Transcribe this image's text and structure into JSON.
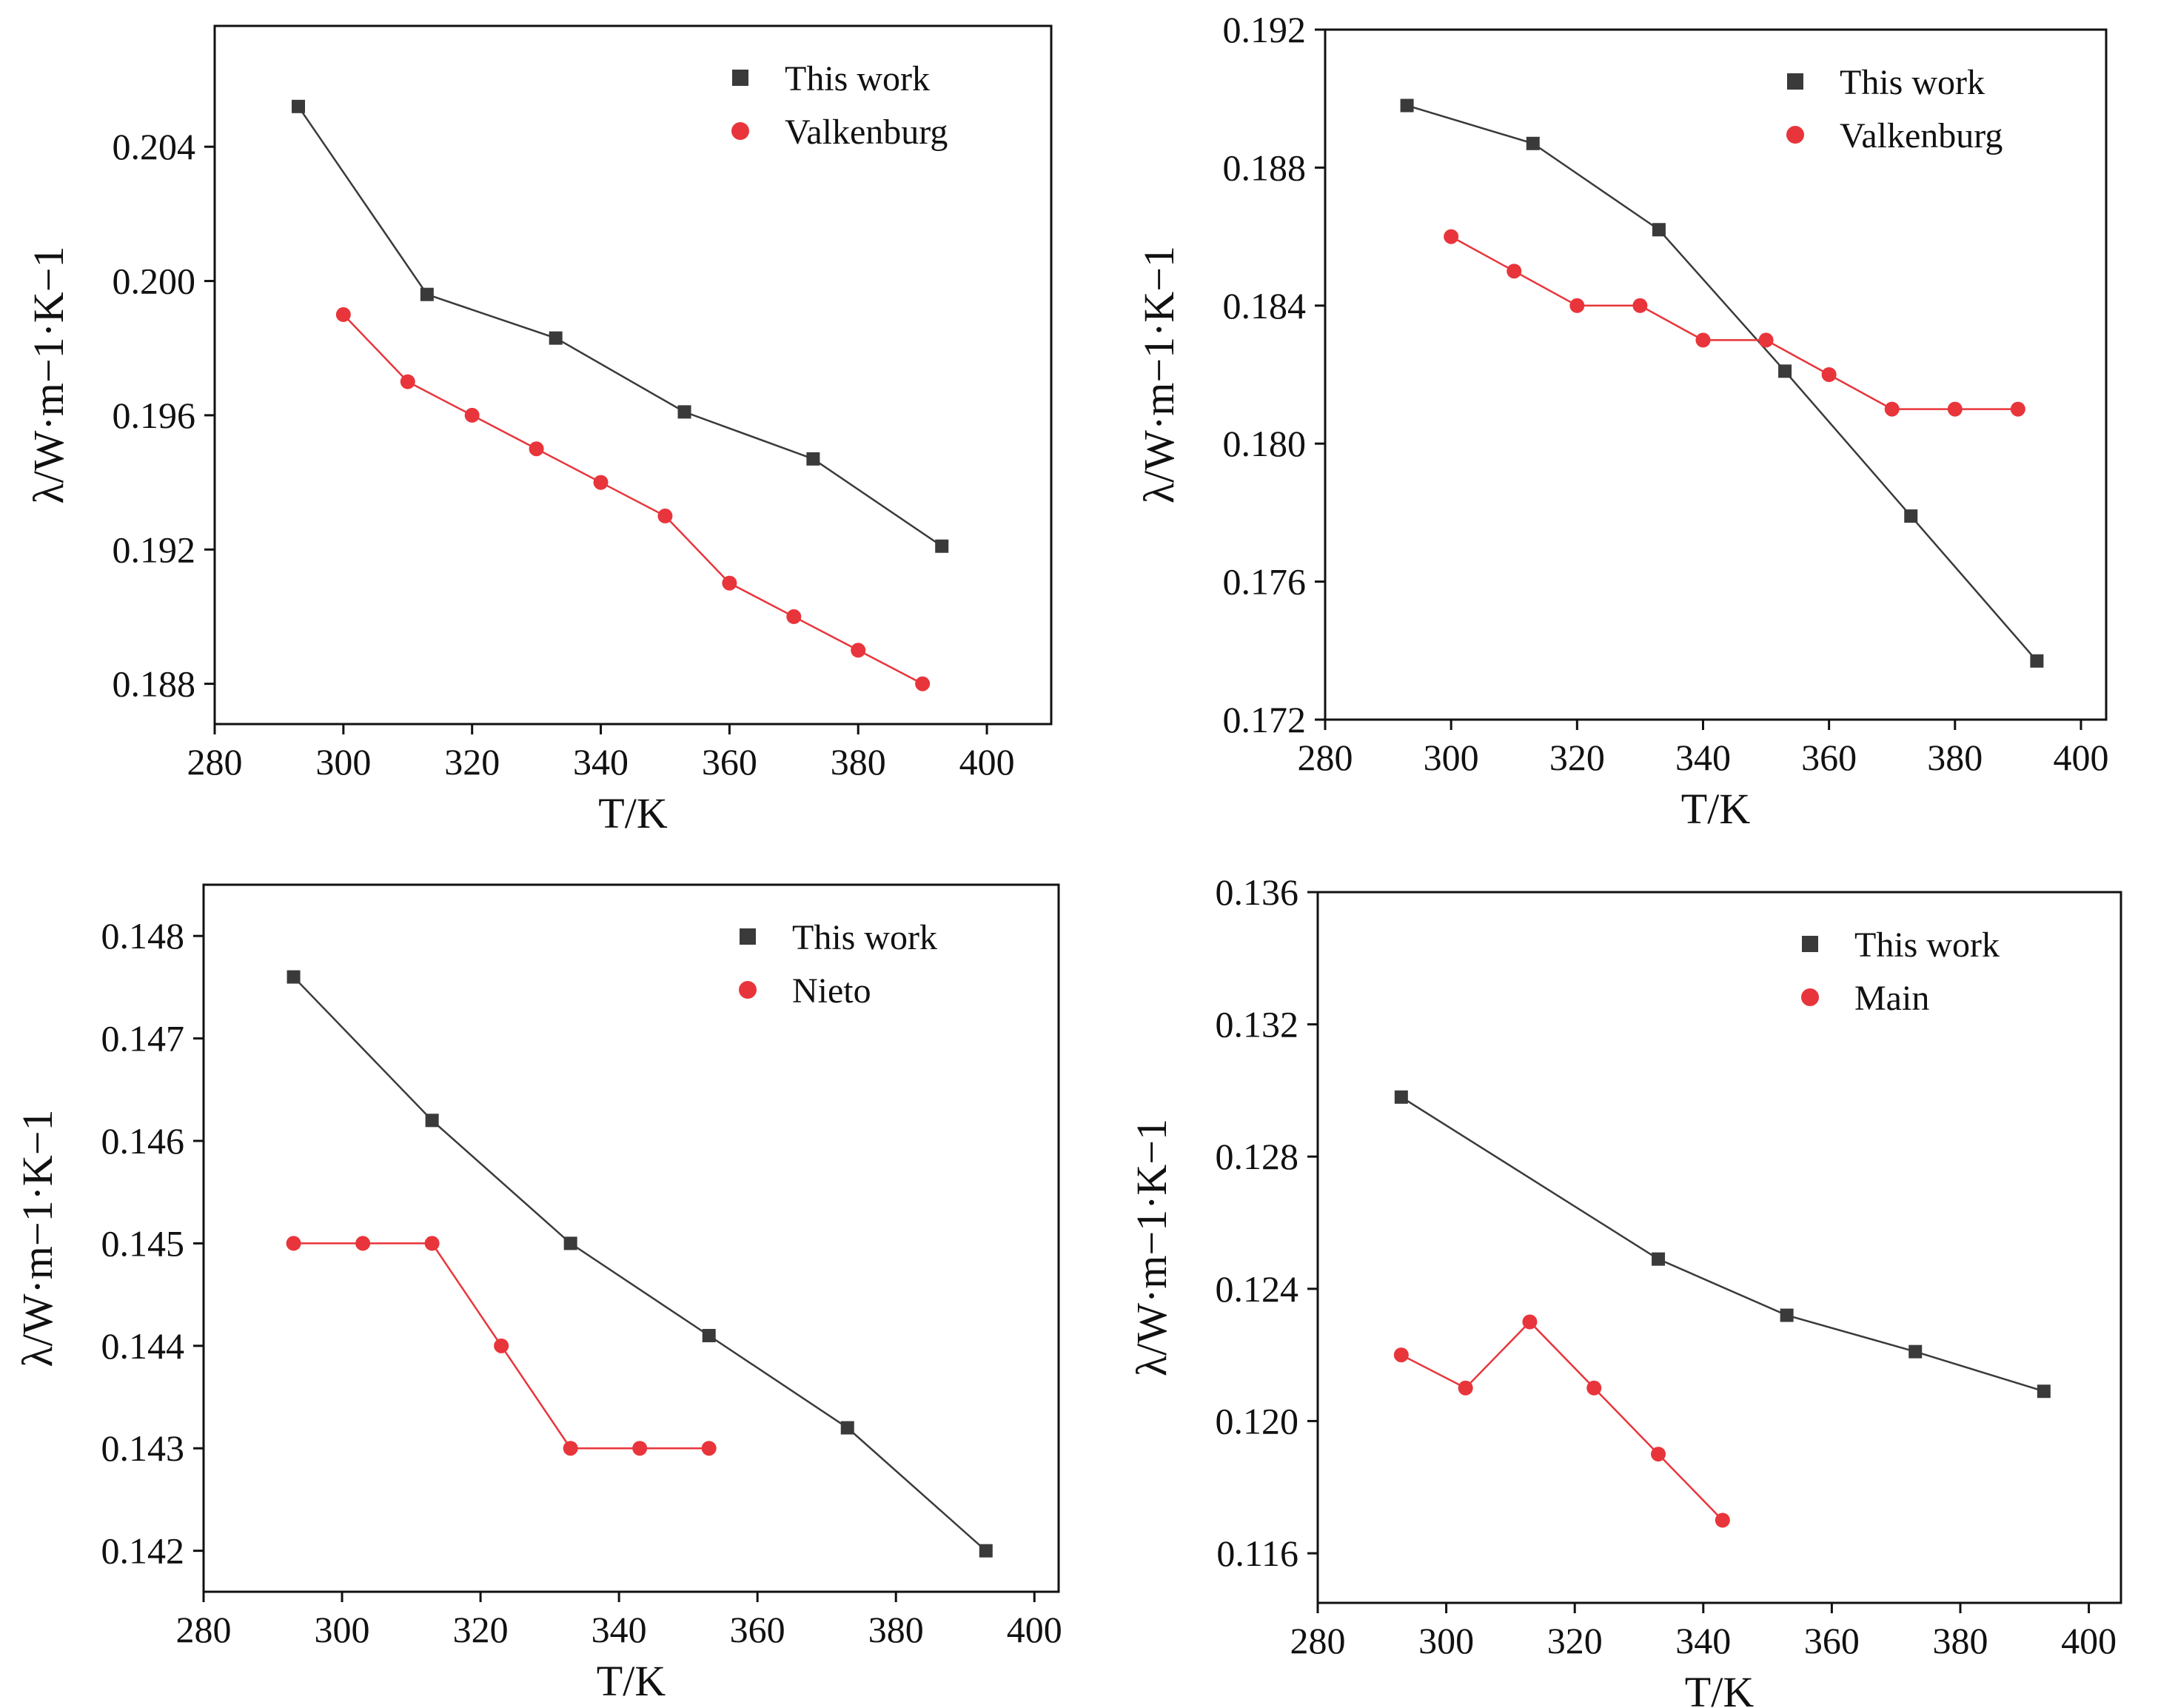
{
  "chart_data": [
    {
      "type": "line",
      "xlabel": "T/K",
      "ylabel": "λ/W·m−1·K−1",
      "xlim": [
        280,
        410
      ],
      "ylim": [
        0.1868,
        0.2076
      ],
      "xticks": [
        280,
        300,
        320,
        340,
        360,
        380,
        400
      ],
      "yticks": [
        0.188,
        0.192,
        0.196,
        0.2,
        0.204
      ],
      "ytick_labels": [
        "0.188",
        "0.192",
        "0.196",
        "0.200",
        "0.204"
      ],
      "legend_position": "top-right",
      "series": [
        {
          "name": "This work",
          "marker": "square",
          "color": "#3a3a3a",
          "x": [
            293,
            313,
            333,
            353,
            373,
            393
          ],
          "y": [
            0.2052,
            0.1996,
            0.1983,
            0.1961,
            0.1947,
            0.1921
          ]
        },
        {
          "name": "Valkenburg",
          "marker": "circle",
          "color": "#e8353b",
          "x": [
            300,
            310,
            320,
            330,
            340,
            350,
            360,
            370,
            380,
            390
          ],
          "y": [
            0.199,
            0.197,
            0.196,
            0.195,
            0.194,
            0.193,
            0.191,
            0.19,
            0.189,
            0.188
          ]
        }
      ]
    },
    {
      "type": "line",
      "xlabel": "T/K",
      "ylabel": "λ/W·m−1·K−1",
      "xlim": [
        280,
        404
      ],
      "ylim": [
        0.172,
        0.192
      ],
      "xticks": [
        280,
        300,
        320,
        340,
        360,
        380,
        400
      ],
      "yticks": [
        0.172,
        0.176,
        0.18,
        0.184,
        0.188,
        0.192
      ],
      "ytick_labels": [
        "0.172",
        "0.176",
        "0.180",
        "0.184",
        "0.188",
        "0.192"
      ],
      "legend_position": "top-right",
      "series": [
        {
          "name": "This work",
          "marker": "square",
          "color": "#3a3a3a",
          "x": [
            293,
            313,
            333,
            353,
            373,
            393
          ],
          "y": [
            0.1898,
            0.1887,
            0.1862,
            0.1821,
            0.1779,
            0.1737
          ]
        },
        {
          "name": "Valkenburg",
          "marker": "circle",
          "color": "#e8353b",
          "x": [
            300,
            310,
            320,
            330,
            340,
            350,
            360,
            370,
            380,
            390
          ],
          "y": [
            0.186,
            0.185,
            0.184,
            0.184,
            0.183,
            0.183,
            0.182,
            0.181,
            0.181,
            0.181
          ]
        }
      ]
    },
    {
      "type": "line",
      "xlabel": "T/K",
      "ylabel": "λ/W·m−1·K−1",
      "xlim": [
        280,
        403.5
      ],
      "ylim": [
        0.1416,
        0.1485
      ],
      "xticks": [
        280,
        300,
        320,
        340,
        360,
        380,
        400
      ],
      "yticks": [
        0.142,
        0.143,
        0.144,
        0.145,
        0.146,
        0.147,
        0.148
      ],
      "ytick_labels": [
        "0.142",
        "0.143",
        "0.144",
        "0.145",
        "0.146",
        "0.147",
        "0.148"
      ],
      "legend_position": "top-right",
      "series": [
        {
          "name": "This work",
          "marker": "square",
          "color": "#3a3a3a",
          "x": [
            293,
            313,
            333,
            353,
            373,
            393
          ],
          "y": [
            0.1476,
            0.1462,
            0.145,
            0.1441,
            0.1432,
            0.142
          ]
        },
        {
          "name": "Nieto",
          "marker": "circle",
          "color": "#e8353b",
          "x": [
            293,
            303,
            313,
            323,
            333,
            343,
            353
          ],
          "y": [
            0.145,
            0.145,
            0.145,
            0.144,
            0.143,
            0.143,
            0.143
          ]
        }
      ]
    },
    {
      "type": "line",
      "xlabel": "T/K",
      "ylabel": "λ/W·m−1·K−1",
      "xlim": [
        280,
        405
      ],
      "ylim": [
        0.1145,
        0.136
      ],
      "xticks": [
        280,
        300,
        320,
        340,
        360,
        380,
        400
      ],
      "yticks": [
        0.116,
        0.12,
        0.124,
        0.128,
        0.132,
        0.136
      ],
      "ytick_labels": [
        "0.116",
        "0.120",
        "0.124",
        "0.128",
        "0.132",
        "0.136"
      ],
      "legend_position": "top-right",
      "series": [
        {
          "name": "This work",
          "marker": "square",
          "color": "#3a3a3a",
          "x": [
            293,
            333,
            353,
            373,
            393
          ],
          "y": [
            0.1298,
            0.1249,
            0.1232,
            0.1221,
            0.1209
          ]
        },
        {
          "name": "Main",
          "marker": "circle",
          "color": "#e8353b",
          "x": [
            293,
            303,
            313,
            323,
            333,
            343
          ],
          "y": [
            0.122,
            0.121,
            0.123,
            0.121,
            0.119,
            0.117
          ]
        }
      ]
    }
  ]
}
